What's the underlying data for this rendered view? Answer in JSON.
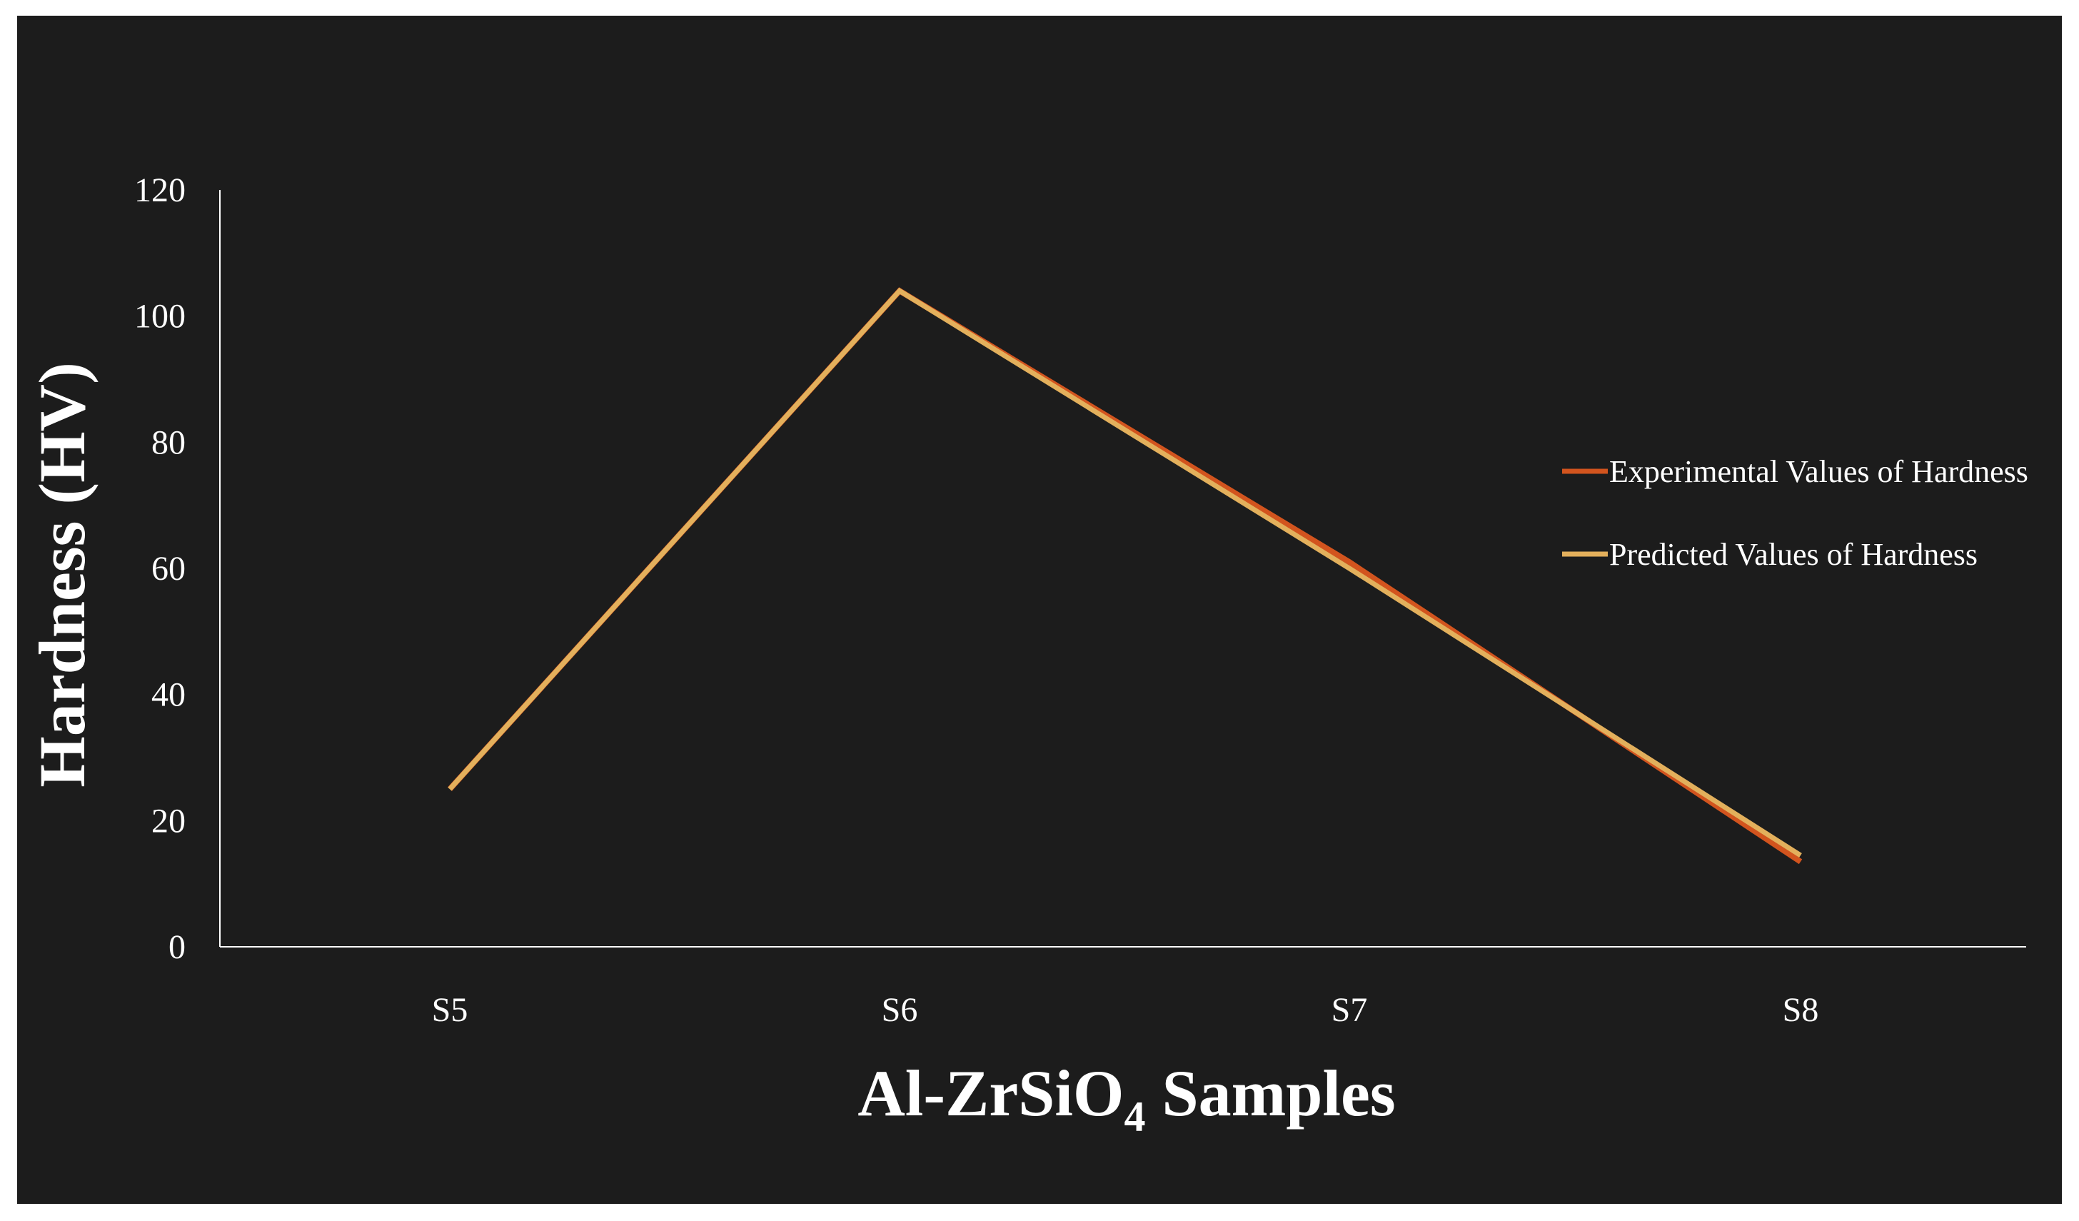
{
  "chart_data": {
    "type": "line",
    "categories": [
      "S5",
      "S6",
      "S7",
      "S8"
    ],
    "ylim": [
      0,
      120
    ],
    "yticks": [
      0,
      20,
      40,
      60,
      80,
      100,
      120
    ],
    "ylabel": "Hardness (HV)",
    "xlabel": {
      "prefix": "Al-ZrSiO",
      "subscript": "4",
      "suffix": " Samples"
    },
    "grid": false,
    "legend_position": "right",
    "series": [
      {
        "name": "Experimental Values of Hardness",
        "color": "#d2541e",
        "values": [
          25,
          104,
          61,
          13.5
        ]
      },
      {
        "name": "Predicted Values of Hardness",
        "color": "#e3b05c",
        "values": [
          25,
          104,
          60,
          14.5
        ]
      }
    ],
    "background": "#1c1c1c",
    "axis_color": "#ffffff"
  }
}
